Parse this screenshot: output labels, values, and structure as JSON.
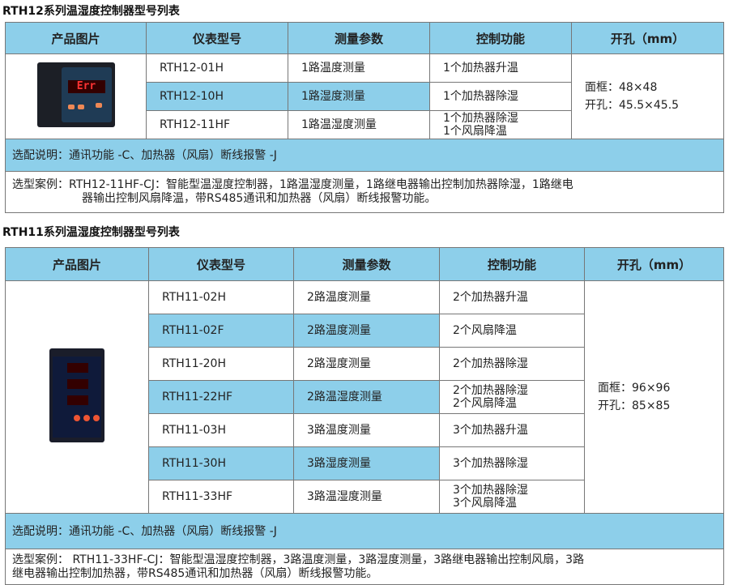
{
  "rth12": {
    "title": "RTH12系列温湿度控制器型号列表",
    "headers": [
      "产品图片",
      "仪表型号",
      "测量参数",
      "控制功能",
      "开孔（mm）"
    ],
    "rows": [
      {
        "model": "RTH12-01H",
        "measure": "1路温度测量",
        "control": [
          "1个加热器升温"
        ],
        "highlight": false
      },
      {
        "model": "RTH12-10H",
        "measure": "1路湿度测量",
        "control": [
          "1个加热器除湿"
        ],
        "highlight": true
      },
      {
        "model": "RTH12-11HF",
        "measure": "1路温湿度测量",
        "control": [
          "1个加热器除湿",
          "1个风扇降温"
        ],
        "highlight": false
      }
    ],
    "cutout": [
      "面框：48×48",
      "开孔：45.5×45.5"
    ],
    "display_text": "Err",
    "option_note": "选配说明：通讯功能 -C、加热器（风扇）断线报警 -J",
    "example": [
      "选型案例：RTH12-11HF-CJ：智能型温湿度控制器，1路温湿度测量，1路继电器输出控制加热器除湿，1路继电",
      "器输出控制风扇降温，带RS485通讯和加热器（风扇）断线报警功能。"
    ]
  },
  "rth11": {
    "title": "RTH11系列温湿度控制器型号列表",
    "headers": [
      "产品图片",
      "仪表型号",
      "测量参数",
      "控制功能",
      "开孔（mm）"
    ],
    "rows": [
      {
        "model": "RTH11-02H",
        "measure": "2路温度测量",
        "control": [
          "2个加热器升温"
        ],
        "highlight": false
      },
      {
        "model": "RTH11-02F",
        "measure": "2路温度测量",
        "control": [
          "2个风扇降温"
        ],
        "highlight": true
      },
      {
        "model": "RTH11-20H",
        "measure": "2路湿度测量",
        "control": [
          "2个加热器除湿"
        ],
        "highlight": false
      },
      {
        "model": "RTH11-22HF",
        "measure": "2路温湿度测量",
        "control": [
          "2个加热器除湿",
          "2个风扇降温"
        ],
        "highlight": true
      },
      {
        "model": "RTH11-03H",
        "measure": "3路温度测量",
        "control": [
          "3个加热器升温"
        ],
        "highlight": false
      },
      {
        "model": "RTH11-30H",
        "measure": "3路湿度测量",
        "control": [
          "3个加热器除湿"
        ],
        "highlight": true
      },
      {
        "model": "RTH11-33HF",
        "measure": "3路温湿度测量",
        "control": [
          "3个加热器除湿",
          "3个风扇降温"
        ],
        "highlight": false
      }
    ],
    "cutout": [
      "面框：96×96",
      "开孔：85×85"
    ],
    "option_note": "选配说明：通讯功能 -C、加热器（风扇）断线报警 -J",
    "example": [
      "选型案例： RTH11-33HF-CJ：智能型温湿度控制器，3路温度测量，3路湿度测量，3路继电器输出控制风扇，3路",
      "继电器输出控制加热器，带RS485通讯和加热器（风扇）断线报警功能。"
    ]
  },
  "colors": {
    "header_bg": "#8dcfea",
    "border": "#777777"
  }
}
